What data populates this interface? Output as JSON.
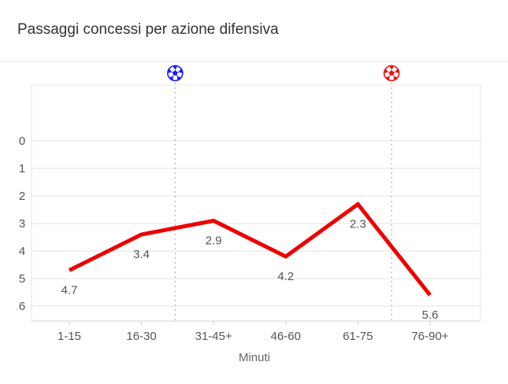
{
  "header": {
    "title": "Passaggi concessi per azione difensiva"
  },
  "chart_data": {
    "type": "line",
    "title": "Passaggi concessi per azione difensiva",
    "xlabel": "Minuti",
    "ylabel": "",
    "categories": [
      "1-15",
      "16-30",
      "31-45+",
      "46-60",
      "61-75",
      "76-90+"
    ],
    "series": [
      {
        "values": [
          4.7,
          3.4,
          2.9,
          4.2,
          2.3,
          5.6
        ],
        "color": "#ee0000"
      }
    ],
    "yticks": [
      0,
      1,
      2,
      3,
      4,
      5,
      6
    ],
    "ylim": [
      0,
      6
    ],
    "y_inverted": true,
    "grid": true,
    "markers": [
      {
        "icon": "blue-soccer-ball-icon",
        "color": "#1a1aff",
        "after_category": "16-30"
      },
      {
        "icon": "red-soccer-ball-icon",
        "color": "#ee1111",
        "after_category": "61-75"
      }
    ]
  }
}
